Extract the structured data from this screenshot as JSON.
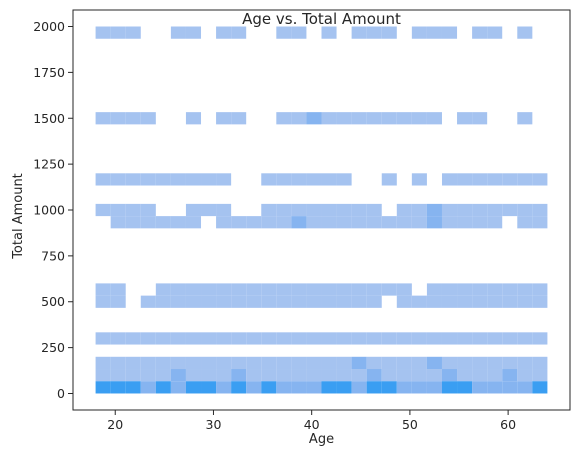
{
  "chart_data": {
    "type": "heatmap",
    "title": "Age vs. Total Amount",
    "xlabel": "Age",
    "ylabel": "Total Amount",
    "xlim": [
      15.7,
      66.3
    ],
    "ylim": [
      -90,
      2090
    ],
    "x_ticks": [
      20,
      30,
      40,
      50,
      60
    ],
    "y_ticks": [
      0,
      250,
      500,
      750,
      1000,
      1250,
      1500,
      1750,
      2000
    ],
    "x_bin_start": 18,
    "x_bin_width": 1.5333,
    "x_bin_count": 30,
    "y_bin_width": 66.67,
    "grid": false,
    "legend": "none",
    "colors": {
      "low": "#a5c3f0",
      "mid": "#86b4f0",
      "high": "#3a9ef2",
      "max": "#36679b"
    },
    "rows": [
      {
        "y": 1966.67,
        "bins": "1110.11011.0110101110111.11.1"
      },
      {
        "y": 1500.0,
        "bins": "11110.10110.11211111111.110.10.1"
      },
      {
        "y": 1166.67,
        "bins": "111111111.0111111.0101.1111111111"
      },
      {
        "y": 1000.0,
        "bins": "11110.111.011111111.11211111111"
      },
      {
        "y": 933.33,
        "bins": "011111101111121111111121111011111"
      },
      {
        "y": 566.67,
        "bins": "110.11111111111111111011111111.111"
      },
      {
        "y": 500.0,
        "bins": "11.1111111111111111.11111111111"
      },
      {
        "y": 300.0,
        "bins": "111111111111111111111111111111"
      },
      {
        "y": 166.67,
        "bins": "111111111111111112111121111111"
      },
      {
        "y": 100.0,
        "bins": "111112111211111111211112111211"
      },
      {
        "y": 33.33,
        "bins": "333232332323222332332223322223"
      }
    ]
  }
}
